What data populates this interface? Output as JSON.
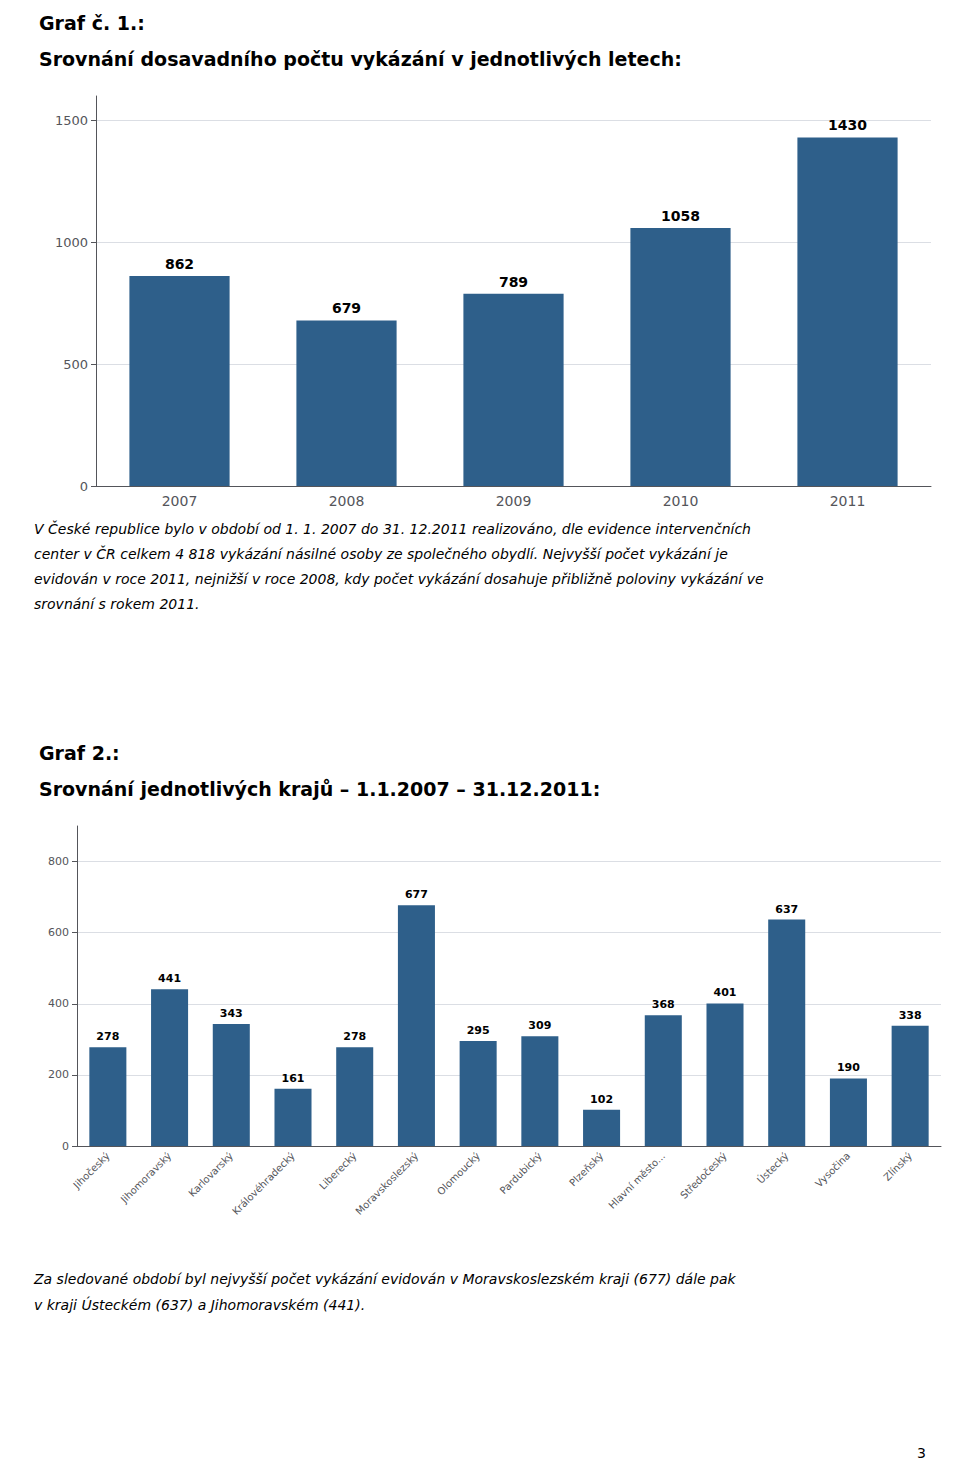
{
  "chart_data": [
    {
      "type": "bar",
      "title": "Graf č. 1.:",
      "subtitle": "Srovnání dosavadního počtu vykázání v jednotlivých letech:",
      "categories": [
        "2007",
        "2008",
        "2009",
        "2010",
        "2011"
      ],
      "values": [
        862,
        679,
        789,
        1058,
        1430
      ],
      "color": "#2E5F8A",
      "ylim": [
        0,
        1600
      ],
      "yticks": [
        0,
        500,
        1000,
        1500
      ],
      "grid": true,
      "data_labels": true,
      "annotations": [
        "V České republice bylo v období od 1. 1. 2007 do 31. 12.2011 realizováno, dle evidence intervenčních",
        "center v ČR celkem 4 818 vykázání násilné osoby ze společného obydlí. Nejvyšší počet vykázání je",
        "evidován v roce 2011, nejnižší v roce 2008, kdy počet vykázání dosahuje přibližně poloviny vykázání ve",
        "srovnání s rokem 2011."
      ]
    },
    {
      "type": "bar",
      "title": "Graf 2.:",
      "subtitle": "Srovnání jednotlivých krajů – 1.1.2007 – 31.12.2011:",
      "categories": [
        "Jihočeský",
        "Jihomoravský",
        "Karlovarský",
        "Královéhradecký",
        "Liberecký",
        "Moravskoslezský",
        "Olomoucký",
        "Pardubický",
        "Plzeňský",
        "Hlavní město...",
        "Středočeský",
        "Ústecký",
        "Vysočina",
        "Zlínský"
      ],
      "values": [
        278,
        441,
        343,
        161,
        278,
        677,
        295,
        309,
        102,
        368,
        401,
        637,
        190,
        338
      ],
      "color": "#2E5F8A",
      "ylim": [
        0,
        900
      ],
      "yticks": [
        0,
        200,
        400,
        600,
        800
      ],
      "grid": true,
      "data_labels": true,
      "annotations": [
        "Za sledované období byl nejvyšší počet vykázání evidován v Moravskoslezském kraji (677) dále pak",
        "v kraji Ústeckém (637) a Jihomoravském (441).",
        "3"
      ]
    }
  ]
}
